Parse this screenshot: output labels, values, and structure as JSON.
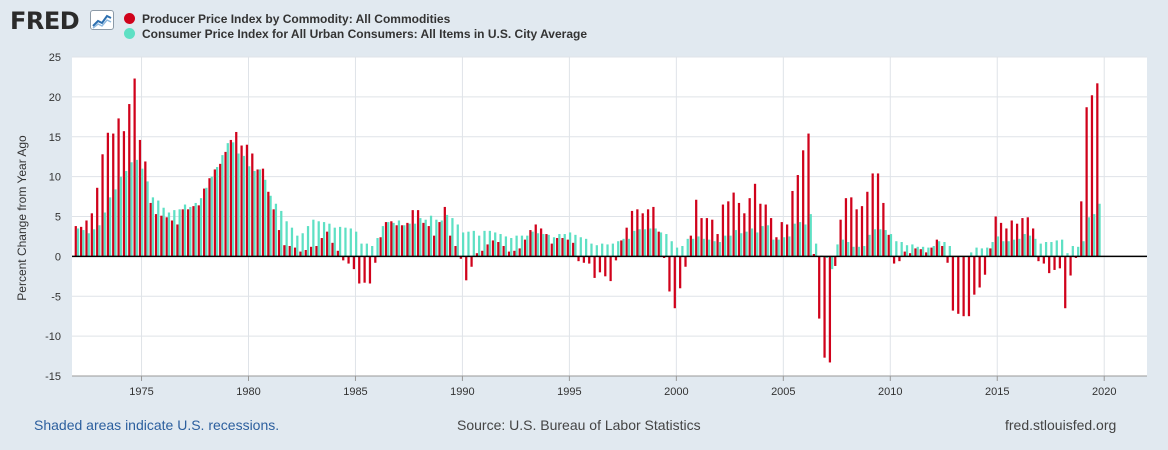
{
  "header": {
    "logo_text": "FRED",
    "logo_icon": "line-graph-icon"
  },
  "legend": [
    {
      "label": "Producer Price Index by Commodity: All Commodities",
      "color": "#d0021b"
    },
    {
      "label": "Consumer Price Index for All Urban Consumers: All Items in U.S. City Average",
      "color": "#5ee0c4"
    }
  ],
  "footer": {
    "recession_note": "Shaded areas indicate U.S. recessions.",
    "source": "Source: U.S. Bureau of Labor Statistics",
    "site": "fred.stlouisfed.org"
  },
  "chart_data": {
    "type": "bar",
    "ylabel": "Percent Change from Year Ago",
    "xlim": [
      1971.75,
      2022.0
    ],
    "ylim": [
      -15,
      25
    ],
    "yticks": [
      25,
      20,
      15,
      10,
      5,
      0,
      -5,
      -10,
      -15
    ],
    "xticks": [
      1975,
      1980,
      1985,
      1990,
      1995,
      2000,
      2005,
      2010,
      2015,
      2020
    ],
    "grid": true,
    "legend_position": "top-left",
    "frequency": "quarterly",
    "x_start": "1972 Q1",
    "series": [
      {
        "name": "Producer Price Index by Commodity: All Commodities",
        "color": "#d0021b",
        "values": [
          3.8,
          3.7,
          4.5,
          5.4,
          8.6,
          12.8,
          15.5,
          15.4,
          17.3,
          15.7,
          19.1,
          22.3,
          14.6,
          11.9,
          6.7,
          5.3,
          5.1,
          4.9,
          4.5,
          4.0,
          5.9,
          5.9,
          6.3,
          6.4,
          8.5,
          9.8,
          10.9,
          11.6,
          13.1,
          14.6,
          15.6,
          13.9,
          14.0,
          12.9,
          10.9,
          11.0,
          8.1,
          5.9,
          3.3,
          1.4,
          1.3,
          1.1,
          0.6,
          0.8,
          1.2,
          1.3,
          2.3,
          3.1,
          1.7,
          0.7,
          -0.5,
          -0.9,
          -1.6,
          -3.4,
          -3.3,
          -3.4,
          -0.8,
          2.4,
          4.3,
          4.4,
          3.9,
          3.9,
          4.2,
          5.8,
          5.8,
          4.2,
          3.8,
          2.6,
          4.3,
          6.2,
          2.6,
          1.3,
          -0.3,
          -3.0,
          -1.3,
          0.4,
          0.7,
          1.5,
          2.0,
          1.8,
          1.3,
          0.6,
          0.7,
          1.0,
          2.1,
          3.3,
          4.0,
          3.5,
          2.8,
          1.6,
          2.3,
          2.3,
          2.1,
          1.7,
          -0.6,
          -0.8,
          -0.9,
          -2.7,
          -2.0,
          -2.5,
          -3.1,
          -0.5,
          2.0,
          3.6,
          5.7,
          5.9,
          5.4,
          5.9,
          6.2,
          3.1,
          -0.2,
          -4.4,
          -6.5,
          -4.0,
          -1.3,
          2.6,
          7.1,
          4.8,
          4.8,
          4.6,
          2.8,
          6.5,
          6.9,
          8.0,
          6.7,
          5.4,
          7.3,
          9.1,
          6.6,
          6.5,
          4.8,
          2.4,
          4.3,
          4.0,
          8.2,
          10.2,
          13.3,
          15.4,
          0.3,
          -7.8,
          -12.7,
          -13.3,
          -1.2,
          4.6,
          7.3,
          7.4,
          5.9,
          6.3,
          8.1,
          10.4,
          10.4,
          6.7,
          2.7,
          -0.9,
          -0.6,
          0.6,
          0.4,
          1.0,
          0.9,
          0.5,
          1.1,
          2.1,
          1.3,
          -0.8,
          -6.8,
          -7.2,
          -7.5,
          -7.5,
          -4.8,
          -3.9,
          -2.3,
          1.0,
          5.0,
          4.2,
          3.5,
          4.5,
          4.1,
          4.8,
          4.9,
          3.5,
          -0.6,
          -0.9,
          -2.1,
          -1.7,
          -1.5,
          -6.5,
          -2.4,
          -0.2,
          6.9,
          18.7,
          20.2,
          21.7
        ]
      },
      {
        "name": "Consumer Price Index for All Urban Consumers: All Items in U.S. City Average",
        "color": "#5ee0c4",
        "values": [
          3.5,
          3.3,
          2.9,
          3.4,
          3.9,
          5.5,
          7.4,
          8.4,
          10.0,
          10.7,
          11.8,
          12.1,
          11.0,
          9.4,
          7.4,
          7.0,
          6.1,
          5.5,
          5.8,
          5.9,
          6.5,
          6.2,
          6.7,
          7.3,
          8.6,
          10.0,
          11.2,
          12.7,
          14.2,
          14.3,
          12.9,
          12.6,
          11.3,
          10.7,
          10.9,
          9.6,
          7.6,
          6.6,
          5.7,
          4.4,
          3.6,
          2.6,
          2.9,
          3.8,
          4.6,
          4.4,
          4.3,
          4.1,
          3.6,
          3.7,
          3.6,
          3.5,
          3.1,
          1.6,
          1.6,
          1.3,
          2.3,
          3.8,
          4.3,
          4.2,
          4.5,
          3.9,
          4.1,
          4.1,
          4.8,
          4.6,
          5.1,
          4.6,
          4.5,
          5.2,
          4.8,
          4.0,
          3.0,
          3.1,
          3.2,
          2.6,
          3.2,
          3.2,
          3.0,
          2.8,
          2.5,
          2.3,
          2.6,
          2.6,
          2.6,
          3.1,
          2.9,
          2.8,
          2.7,
          2.4,
          2.8,
          2.8,
          3.0,
          2.7,
          2.4,
          2.2,
          1.6,
          1.4,
          1.6,
          1.5,
          1.6,
          1.9,
          2.2,
          2.2,
          3.2,
          3.4,
          3.4,
          3.5,
          3.5,
          3.0,
          2.8,
          1.9,
          1.1,
          1.3,
          2.2,
          2.2,
          2.5,
          2.2,
          2.1,
          1.9,
          1.8,
          2.6,
          2.6,
          3.3,
          2.9,
          3.1,
          3.5,
          3.0,
          3.8,
          3.9,
          2.1,
          2.1,
          2.4,
          2.5,
          4.1,
          4.3,
          4.0,
          5.3,
          1.6,
          0.1,
          -0.2,
          -1.6,
          1.5,
          2.1,
          1.8,
          1.2,
          1.2,
          1.3,
          2.7,
          3.4,
          3.4,
          3.3,
          2.8,
          1.9,
          1.8,
          1.4,
          1.5,
          1.2,
          1.2,
          1.1,
          1.3,
          1.9,
          1.8,
          1.3,
          -0.1,
          0.0,
          0.0,
          0.5,
          1.1,
          1.0,
          1.1,
          1.8,
          2.5,
          1.9,
          1.9,
          2.1,
          2.2,
          2.8,
          2.6,
          2.2,
          1.6,
          1.8,
          1.8,
          2.0,
          2.1,
          0.4,
          1.3,
          1.2,
          1.9,
          4.9,
          5.3,
          6.6
        ]
      }
    ]
  }
}
